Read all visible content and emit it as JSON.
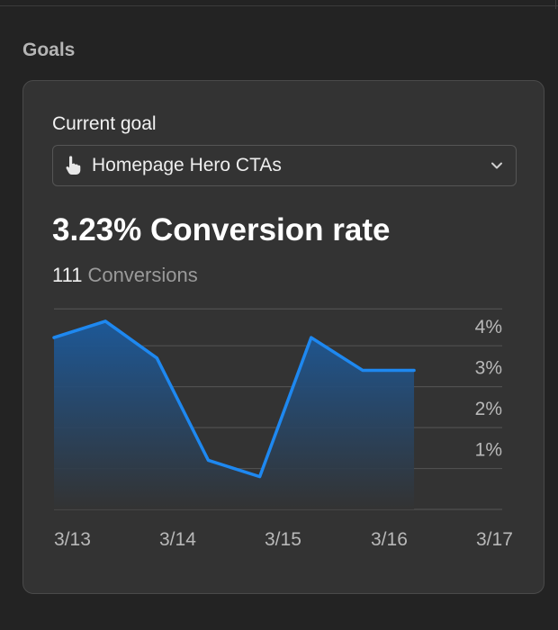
{
  "section": {
    "title": "Goals"
  },
  "card": {
    "goal_label": "Current goal",
    "select": {
      "value": "Homepage Hero CTAs",
      "icon": "pointing-hand-icon"
    },
    "rate_value": "3.23%",
    "rate_label": "Conversion rate",
    "conversions_count": "111",
    "conversions_label": "Conversions"
  },
  "colors": {
    "background": "#232323",
    "card": "#333333",
    "line": "#1e88f0",
    "fill_top": "#1c5a9c",
    "grid": "#505050"
  },
  "chart_data": {
    "type": "area",
    "x": [
      "3/13",
      "3/13.5",
      "3/14",
      "3/14.5",
      "3/15",
      "3/15.5",
      "3/16",
      "3/16.5"
    ],
    "x_numeric": [
      0,
      0.55,
      1.1,
      1.65,
      2.2,
      2.75,
      3.3,
      3.85
    ],
    "values": [
      4.2,
      4.6,
      3.7,
      1.2,
      0.8,
      4.2,
      3.4,
      3.4
    ],
    "xlim": [
      0,
      4.35
    ],
    "ylim": [
      0,
      4.95
    ],
    "x_ticks": [
      "3/13",
      "3/14",
      "3/15",
      "3/16",
      "3/17"
    ],
    "x_tick_values": [
      0,
      1.1,
      2.2,
      3.3,
      4.4
    ],
    "y_ticks": [
      "1%",
      "2%",
      "3%",
      "4%"
    ],
    "y_tick_values": [
      1,
      2,
      3,
      4
    ],
    "grid": true,
    "y_axis_side": "right"
  }
}
